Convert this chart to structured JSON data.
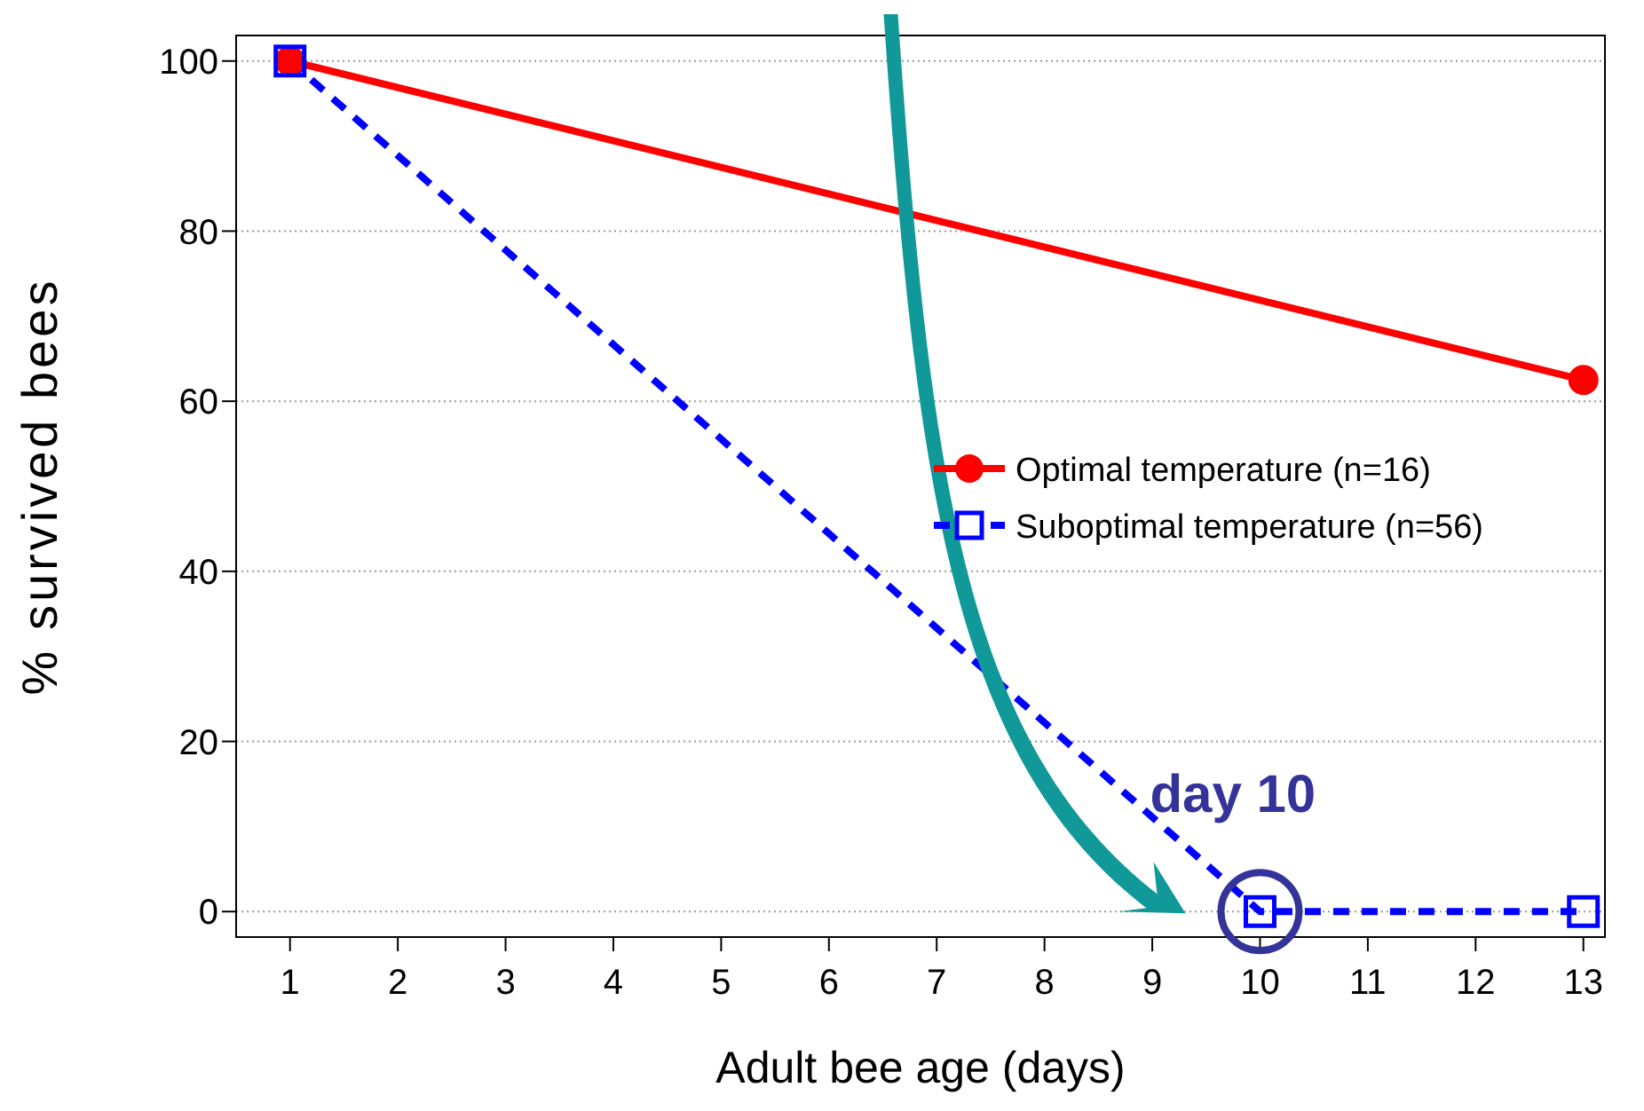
{
  "chart_data": {
    "type": "line",
    "xlabel": "Adult bee age (days)",
    "ylabel": "% survived bees",
    "xlim": [
      0.5,
      13.2
    ],
    "xticks": [
      1,
      2,
      3,
      4,
      5,
      6,
      7,
      8,
      9,
      10,
      11,
      12,
      13
    ],
    "ylim": [
      -3,
      103
    ],
    "yticks": [
      0,
      20,
      40,
      60,
      80,
      100
    ],
    "grid": "y",
    "legend": "right",
    "series": [
      {
        "name": "Optimal temperature (n=16)",
        "color": "#ff0000",
        "x": [
          1,
          13
        ],
        "values": [
          100,
          62.5
        ],
        "marker": "circle",
        "line_style": "solid"
      },
      {
        "name": "Suboptimal temperature (n=56)",
        "color": "#0000ff",
        "x": [
          1,
          10,
          13
        ],
        "values": [
          100,
          0,
          0
        ],
        "marker": "square",
        "line_style": "dashed"
      }
    ],
    "annotations": [
      {
        "text": "day 10",
        "x": 10,
        "y": 0
      }
    ]
  }
}
